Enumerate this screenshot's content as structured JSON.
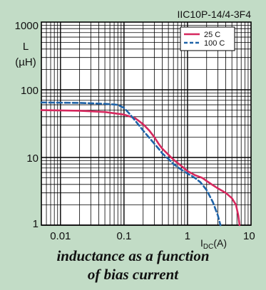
{
  "chart_data": {
    "type": "line",
    "title": "IIC10P-14/4-3F4",
    "ylabel": "L",
    "yunit": "(µH)",
    "xlabel_main": "I",
    "xlabel_sub": "DC",
    "xlabel_unit": "(A)",
    "x_scale": "log",
    "y_scale": "log",
    "xlim": [
      0.005,
      10
    ],
    "ylim": [
      1,
      1000
    ],
    "grid": true,
    "legend_position": "top-right",
    "x_ticks": [
      {
        "value": 0.01,
        "label": "0.01"
      },
      {
        "value": 0.1,
        "label": "0.1"
      },
      {
        "value": 1,
        "label": "1"
      },
      {
        "value": 10,
        "label": "10"
      }
    ],
    "y_ticks": [
      {
        "value": 1,
        "label": "1"
      },
      {
        "value": 10,
        "label": "10"
      },
      {
        "value": 100,
        "label": "100"
      },
      {
        "value": 1000,
        "label": "1000"
      }
    ],
    "series": [
      {
        "name": "25  C",
        "color": "#d6285e",
        "dash": "solid",
        "x": [
          0.005,
          0.02,
          0.05,
          0.1,
          0.15,
          0.2,
          0.25,
          0.3,
          0.35,
          0.4,
          0.5,
          0.6,
          0.8,
          1.0,
          1.3,
          1.7,
          2.0,
          2.5,
          3.0,
          4.0,
          5.0,
          5.8,
          6.3,
          6.6
        ],
        "y": [
          50,
          49,
          47,
          43,
          38,
          31,
          25,
          20,
          16,
          13.5,
          11,
          9.3,
          7.5,
          6.3,
          5.5,
          5.0,
          4.5,
          3.9,
          3.5,
          3.0,
          2.5,
          2.0,
          1.4,
          1.0
        ]
      },
      {
        "name": "100  C",
        "color": "#1f63a8",
        "dash": "dashed",
        "x": [
          0.005,
          0.02,
          0.05,
          0.08,
          0.1,
          0.12,
          0.15,
          0.2,
          0.25,
          0.3,
          0.35,
          0.4,
          0.5,
          0.6,
          0.8,
          1.0,
          1.3,
          1.6,
          2.0,
          2.5,
          3.0,
          3.3
        ],
        "y": [
          65,
          64,
          62,
          60,
          54,
          45,
          35,
          25,
          19.5,
          16,
          13.5,
          11.5,
          9.5,
          8,
          6.6,
          5.8,
          5.0,
          4.3,
          3.3,
          2.2,
          1.4,
          1.0
        ]
      }
    ]
  },
  "caption": {
    "line1": "inductance as a function",
    "line2": "of bias current"
  },
  "colors": {
    "background": "#c2dcc6",
    "plot_background": "#ffffff",
    "grid": "#000000"
  }
}
